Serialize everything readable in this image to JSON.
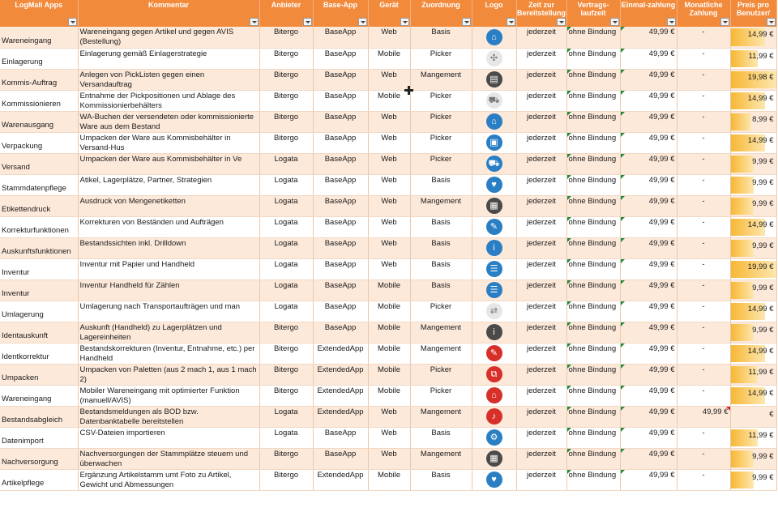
{
  "headers": [
    {
      "label": "LogMali Apps"
    },
    {
      "label": "Kommentar"
    },
    {
      "label": "Anbieter"
    },
    {
      "label": "Base-App"
    },
    {
      "label": "Gerät"
    },
    {
      "label": "Zuordnung"
    },
    {
      "label": "Logo"
    },
    {
      "label": "Zeit zur Bereitstellung"
    },
    {
      "label": "Vertrags-laufzeit"
    },
    {
      "label": "Einmal-zahlung"
    },
    {
      "label": "Monatliche Zahlung"
    },
    {
      "label": "Preis pro Benutzer/"
    }
  ],
  "rows": [
    {
      "app": "Wareneingang",
      "kom": "Wareneingang gegen Artikel und gegen AVIS (Bestellung)",
      "anbieter": "Bitergo",
      "base": "BaseApp",
      "geraet": "Web",
      "zuordnung": "Basis",
      "icon": "warehouse-icon",
      "icon_glyph": "⌂",
      "icon_style": "blue",
      "zeit": "jederzeit",
      "laufzeit": "ohne Bindung",
      "einmal": "49,99 €",
      "monat": "-",
      "preis": "14,99 €",
      "preis_level": 0.75
    },
    {
      "app": "Einlagerung",
      "kom": "Einlagerung gemäß Einlagerstrategie",
      "anbieter": "Bitergo",
      "base": "BaseApp",
      "geraet": "Mobile",
      "zuordnung": "Picker",
      "icon": "storage-icon",
      "icon_glyph": "✣",
      "icon_style": "grey",
      "zeit": "jederzeit",
      "laufzeit": "ohne Bindung",
      "einmal": "49,99 €",
      "monat": "-",
      "preis": "11,99 €",
      "preis_level": 0.6
    },
    {
      "app": "Kommis-Auftrag",
      "kom": "Anlegen von PickListen gegen einen Versandauftrag",
      "anbieter": "Bitergo",
      "base": "BaseApp",
      "geraet": "Web",
      "zuordnung": "Mangement",
      "icon": "document-icon",
      "icon_glyph": "▤",
      "icon_style": "dark",
      "zeit": "jederzeit",
      "laufzeit": "ohne Bindung",
      "einmal": "49,99 €",
      "monat": "-",
      "preis": "19,98 €",
      "preis_level": 1.0
    },
    {
      "app": "Kommissionieren",
      "kom": "Entnahme der Pickpositionen und Ablage des Kommissionierbehälters",
      "anbieter": "Bitergo",
      "base": "BaseApp",
      "geraet": "Mobile",
      "zuordnung": "Picker",
      "icon": "cart-icon",
      "icon_glyph": "⛟",
      "icon_style": "grey",
      "zeit": "jederzeit",
      "laufzeit": "ohne Bindung",
      "einmal": "49,99 €",
      "monat": "-",
      "preis": "14,99 €",
      "preis_level": 0.75
    },
    {
      "app": "Warenausgang",
      "kom": "WA-Buchen der versendeten oder kommissionierte Ware aus dem Bestand",
      "anbieter": "Bitergo",
      "base": "BaseApp",
      "geraet": "Web",
      "zuordnung": "Picker",
      "icon": "outbound-icon",
      "icon_glyph": "⌂",
      "icon_style": "blue",
      "zeit": "jederzeit",
      "laufzeit": "ohne Bindung",
      "einmal": "49,99 €",
      "monat": "-",
      "preis": "8,99 €",
      "preis_level": 0.45
    },
    {
      "app": "Verpackung",
      "kom": "Umpacken der Ware aus Kommisbehälter in Versand-Hus",
      "anbieter": "Bitergo",
      "base": "BaseApp",
      "geraet": "Web",
      "zuordnung": "Picker",
      "icon": "package-icon",
      "icon_glyph": "▣",
      "icon_style": "blue",
      "zeit": "jederzeit",
      "laufzeit": "ohne Bindung",
      "einmal": "49,99 €",
      "monat": "-",
      "preis": "14,99 €",
      "preis_level": 0.75
    },
    {
      "app": "Versand",
      "kom": "Umpacken der Ware aus Kommisbehälter in Ve",
      "anbieter": "Logata",
      "base": "BaseApp",
      "geraet": "Web",
      "zuordnung": "Picker",
      "icon": "truck-icon",
      "icon_glyph": "⛟",
      "icon_style": "blue",
      "zeit": "jederzeit",
      "laufzeit": "ohne Bindung",
      "einmal": "49,99 €",
      "monat": "-",
      "preis": "9,99 €",
      "preis_level": 0.5
    },
    {
      "app": "Stammdatenpflege",
      "kom": "Atikel, Lagerplätze, Partner, Strategien",
      "anbieter": "Logata",
      "base": "BaseApp",
      "geraet": "Web",
      "zuordnung": "Basis",
      "icon": "master-data-icon",
      "icon_glyph": "♥",
      "icon_style": "blue",
      "zeit": "jederzeit",
      "laufzeit": "ohne Bindung",
      "einmal": "49,99 €",
      "monat": "-",
      "preis": "9,99 €",
      "preis_level": 0.5
    },
    {
      "app": "Etikettendruck",
      "kom": "Ausdruck von Mengenetiketten",
      "anbieter": "Logata",
      "base": "BaseApp",
      "geraet": "Web",
      "zuordnung": "Mangement",
      "icon": "label-print-icon",
      "icon_glyph": "▦",
      "icon_style": "dark",
      "zeit": "jederzeit",
      "laufzeit": "ohne Bindung",
      "einmal": "49,99 €",
      "monat": "-",
      "preis": "9,99 €",
      "preis_level": 0.5
    },
    {
      "app": "Korrekturfunktionen",
      "kom": "Korrekturen von Beständen und Aufträgen",
      "anbieter": "Logata",
      "base": "BaseApp",
      "geraet": "Web",
      "zuordnung": "Basis",
      "icon": "edit-icon",
      "icon_glyph": "✎",
      "icon_style": "blue",
      "zeit": "jederzeit",
      "laufzeit": "ohne Bindung",
      "einmal": "49,99 €",
      "monat": "-",
      "preis": "14,99 €",
      "preis_level": 0.75
    },
    {
      "app": "Auskunftsfunktionen",
      "kom": "Bestandssichten inkl. Drilldown",
      "anbieter": "Logata",
      "base": "BaseApp",
      "geraet": "Web",
      "zuordnung": "Basis",
      "icon": "info-icon",
      "icon_glyph": "i",
      "icon_style": "blue",
      "zeit": "jederzeit",
      "laufzeit": "ohne Bindung",
      "einmal": "49,99 €",
      "monat": "-",
      "preis": "9,99 €",
      "preis_level": 0.5
    },
    {
      "app": "Inventur",
      "kom": "Inventur mit Papier und Handheld",
      "anbieter": "Logata",
      "base": "BaseApp",
      "geraet": "Web",
      "zuordnung": "Basis",
      "icon": "inventory-list-icon",
      "icon_glyph": "☰",
      "icon_style": "blue",
      "zeit": "jederzeit",
      "laufzeit": "ohne Bindung",
      "einmal": "49,99 €",
      "monat": "-",
      "preis": "19,99 €",
      "preis_level": 1.0
    },
    {
      "app": "Inventur",
      "kom": "Inventur Handheld für Zählen",
      "anbieter": "Logata",
      "base": "BaseApp",
      "geraet": "Mobile",
      "zuordnung": "Basis",
      "icon": "handheld-list-icon",
      "icon_glyph": "☰",
      "icon_style": "blue",
      "zeit": "jederzeit",
      "laufzeit": "ohne Bindung",
      "einmal": "49,99 €",
      "monat": "-",
      "preis": "9,99 €",
      "preis_level": 0.5
    },
    {
      "app": "Umlagerung",
      "kom": "Umlagerung nach Transportaufträgen und man",
      "anbieter": "Logata",
      "base": "BaseApp",
      "geraet": "Mobile",
      "zuordnung": "Picker",
      "icon": "transfer-icon",
      "icon_glyph": "⇄",
      "icon_style": "grey",
      "zeit": "jederzeit",
      "laufzeit": "ohne Bindung",
      "einmal": "49,99 €",
      "monat": "-",
      "preis": "14,99 €",
      "preis_level": 0.75
    },
    {
      "app": "Identauskunft",
      "kom": "Auskunft (Handheld) zu Lagerplätzen und Lagereinheiten",
      "anbieter": "Bitergo",
      "base": "BaseApp",
      "geraet": "Mobile",
      "zuordnung": "Mangement",
      "icon": "info-icon",
      "icon_glyph": "i",
      "icon_style": "dark",
      "zeit": "jederzeit",
      "laufzeit": "ohne Bindung",
      "einmal": "49,99 €",
      "monat": "-",
      "preis": "9,99 €",
      "preis_level": 0.5
    },
    {
      "app": "Identkorrektur",
      "kom": "Bestandskorrekturen (Inventur, Entnahme, etc.) per Handheld",
      "anbieter": "Bitergo",
      "base": "ExtendedApp",
      "geraet": "Mobile",
      "zuordnung": "Mangement",
      "icon": "correction-icon",
      "icon_glyph": "✎",
      "icon_style": "red",
      "zeit": "jederzeit",
      "laufzeit": "ohne Bindung",
      "einmal": "49,99 €",
      "monat": "-",
      "preis": "14,99 €",
      "preis_level": 0.75
    },
    {
      "app": "Umpacken",
      "kom": "Umpacken von Paletten (aus 2 mach 1, aus 1 mach 2)",
      "anbieter": "Bitergo",
      "base": "ExtendedApp",
      "geraet": "Mobile",
      "zuordnung": "Picker",
      "icon": "repack-icon",
      "icon_glyph": "⧉",
      "icon_style": "red",
      "zeit": "jederzeit",
      "laufzeit": "ohne Bindung",
      "einmal": "49,99 €",
      "monat": "-",
      "preis": "11,99 €",
      "preis_level": 0.6
    },
    {
      "app": "Wareneingang",
      "kom": "Mobiler Wareneingang mit optimierter Funktion (manuell/AVIS)",
      "anbieter": "Bitergo",
      "base": "ExtendedApp",
      "geraet": "Mobile",
      "zuordnung": "Picker",
      "icon": "warehouse-icon",
      "icon_glyph": "⌂",
      "icon_style": "red",
      "zeit": "jederzeit",
      "laufzeit": "ohne Bindung",
      "einmal": "49,99 €",
      "monat": "-",
      "preis": "14,99 €",
      "preis_level": 0.75
    },
    {
      "app": "Bestandsabgleich",
      "kom": "Bestandsmeldungen als BOD bzw. Datenbanktabelle bereitstellen",
      "anbieter": "Logata",
      "base": "ExtendedApp",
      "geraet": "Web",
      "zuordnung": "Mangement",
      "icon": "bell-icon",
      "icon_glyph": "♪",
      "icon_style": "red",
      "zeit": "jederzeit",
      "laufzeit": "ohne Bindung",
      "einmal": "49,99 €",
      "monat": "49,99 €",
      "preis": "€",
      "preis_level": 0.0
    },
    {
      "app": "Datenimport",
      "kom": "CSV-Dateien importieren",
      "anbieter": "Logata",
      "base": "BaseApp",
      "geraet": "Web",
      "zuordnung": "Basis",
      "icon": "import-icon",
      "icon_glyph": "⚙",
      "icon_style": "blue",
      "zeit": "jederzeit",
      "laufzeit": "ohne Bindung",
      "einmal": "49,99 €",
      "monat": "-",
      "preis": "11,99 €",
      "preis_level": 0.6
    },
    {
      "app": "Nachversorgung",
      "kom": "Nachversorgungen der Stammplätze steuern und überwachen",
      "anbieter": "Bitergo",
      "base": "BaseApp",
      "geraet": "Web",
      "zuordnung": "Mangement",
      "icon": "supply-icon",
      "icon_glyph": "▦",
      "icon_style": "dark",
      "zeit": "jederzeit",
      "laufzeit": "ohne Bindung",
      "einmal": "49,99 €",
      "monat": "-",
      "preis": "9,99 €",
      "preis_level": 0.5
    },
    {
      "app": "Artikelpflege",
      "kom": "Ergänzung Artikelstamm umt Foto zu Artikel, Gewicht und Abmessungen",
      "anbieter": "Bitergo",
      "base": "ExtendedApp",
      "geraet": "Mobile",
      "zuordnung": "Basis",
      "icon": "article-icon",
      "icon_glyph": "♥",
      "icon_style": "blue",
      "zeit": "jederzeit",
      "laufzeit": "ohne Bindung",
      "einmal": "49,99 €",
      "monat": "-",
      "preis": "9,99 €",
      "preis_level": 0.5
    }
  ]
}
